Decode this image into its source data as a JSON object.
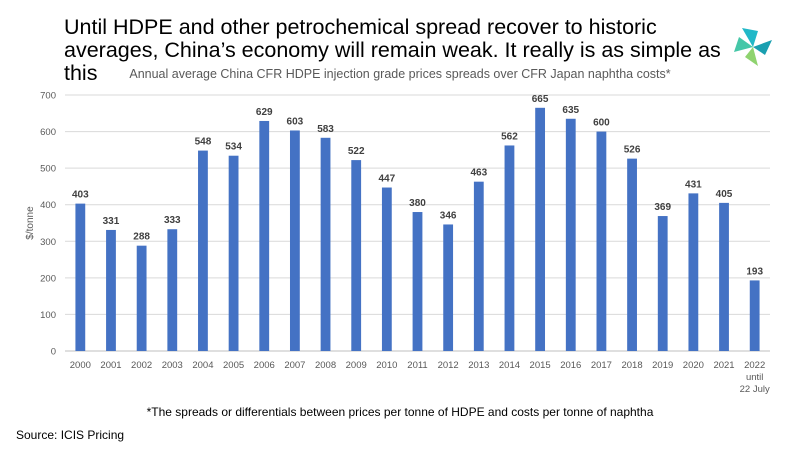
{
  "headline": "Until HDPE and other petrochemical spread recover to historic averages, China’s economy will remain weak. It really is as simple as this",
  "logo": {
    "icon": "icis-logo-icon",
    "colors": [
      "#21b8c8",
      "#1a9fb0",
      "#45c7a8",
      "#8fd36f"
    ]
  },
  "footnote": "*The spreads or differentials between prices per tonne of HDPE and costs per tonne of naphtha",
  "source": "Source: ICIS Pricing",
  "chart_data": {
    "type": "bar",
    "title": "Annual average China CFR HDPE injection grade prices spreads over CFR Japan naphtha costs*",
    "ylabel": "$/tonne",
    "xlabel": "",
    "ylim": [
      0,
      700
    ],
    "yticks": [
      0,
      100,
      200,
      300,
      400,
      500,
      600,
      700
    ],
    "grid": true,
    "bar_color": "#4472c4",
    "categories": [
      "2000",
      "2001",
      "2002",
      "2003",
      "2004",
      "2005",
      "2006",
      "2007",
      "2008",
      "2009",
      "2010",
      "2011",
      "2012",
      "2013",
      "2014",
      "2015",
      "2016",
      "2017",
      "2018",
      "2019",
      "2020",
      "2021",
      "2022 until 22 July"
    ],
    "category_lines": [
      [
        "2000"
      ],
      [
        "2001"
      ],
      [
        "2002"
      ],
      [
        "2003"
      ],
      [
        "2004"
      ],
      [
        "2005"
      ],
      [
        "2006"
      ],
      [
        "2007"
      ],
      [
        "2008"
      ],
      [
        "2009"
      ],
      [
        "2010"
      ],
      [
        "2011"
      ],
      [
        "2012"
      ],
      [
        "2013"
      ],
      [
        "2014"
      ],
      [
        "2015"
      ],
      [
        "2016"
      ],
      [
        "2017"
      ],
      [
        "2018"
      ],
      [
        "2019"
      ],
      [
        "2020"
      ],
      [
        "2021"
      ],
      [
        "2022",
        "until",
        "22 July"
      ]
    ],
    "values": [
      403,
      331,
      288,
      333,
      548,
      534,
      629,
      603,
      583,
      522,
      447,
      380,
      346,
      463,
      562,
      665,
      635,
      600,
      526,
      369,
      431,
      405,
      193
    ],
    "value_labels": [
      "403",
      "331",
      "288",
      "333",
      "548",
      "534",
      "629",
      "603",
      "583",
      "522",
      "447",
      "380",
      "346",
      "463",
      "562",
      "665",
      "635",
      "600",
      "526",
      "369",
      "431",
      "405",
      "193"
    ]
  }
}
